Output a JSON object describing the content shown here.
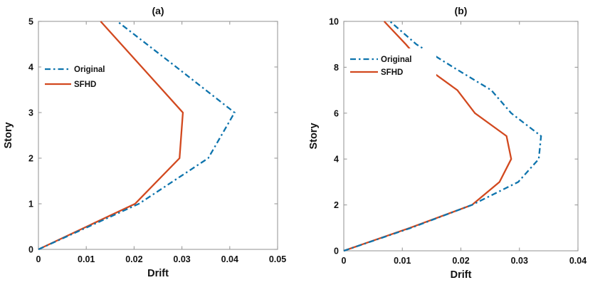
{
  "figure": {
    "background": "#ffffff",
    "axis_color": "#9a9a9a",
    "text_color": "#111111"
  },
  "chart_data": [
    {
      "id": "a",
      "type": "line",
      "title": "(a)",
      "xlabel": "Drift",
      "ylabel": "Story",
      "xlim": [
        0,
        0.05
      ],
      "ylim": [
        0,
        5
      ],
      "xticks": [
        0,
        0.01,
        0.02,
        0.03,
        0.04,
        0.05
      ],
      "yticks": [
        0,
        1,
        2,
        3,
        4,
        5
      ],
      "grid": false,
      "legend_position": "upper-left-inside",
      "legend": [
        "Original",
        "SFHD"
      ],
      "series": [
        {
          "name": "Original",
          "color": "#0e74ad",
          "style": "dash-dot",
          "stories": [
            0,
            1,
            2,
            3,
            4,
            5
          ],
          "drift": [
            0,
            0.021,
            0.0355,
            0.041,
            0.0288,
            0.0165
          ]
        },
        {
          "name": "SFHD",
          "color": "#d2491f",
          "style": "solid",
          "stories": [
            0,
            1,
            2,
            3,
            4,
            5
          ],
          "drift": [
            0,
            0.0202,
            0.0295,
            0.0302,
            0.0216,
            0.013
          ]
        }
      ]
    },
    {
      "id": "b",
      "type": "line",
      "title": "(b)",
      "xlabel": "Drift",
      "ylabel": "Story",
      "xlim": [
        0,
        0.04
      ],
      "ylim": [
        0,
        10
      ],
      "xticks": [
        0,
        0.01,
        0.02,
        0.03,
        0.04
      ],
      "yticks": [
        0,
        2,
        4,
        6,
        8,
        10
      ],
      "grid": false,
      "legend_position": "upper-left-inside",
      "legend": [
        "Original",
        "SFHD"
      ],
      "series": [
        {
          "name": "Original",
          "color": "#0e74ad",
          "style": "dash-dot",
          "stories": [
            0,
            1,
            2,
            3,
            4,
            5,
            6,
            7,
            8,
            9,
            10
          ],
          "drift": [
            0,
            0.0115,
            0.0219,
            0.0298,
            0.0333,
            0.0337,
            0.0286,
            0.0252,
            0.0187,
            0.0124,
            0.0079
          ]
        },
        {
          "name": "SFHD",
          "color": "#d2491f",
          "style": "solid",
          "stories": [
            0,
            1,
            2,
            3,
            4,
            5,
            6,
            7,
            8,
            9,
            10
          ],
          "drift": [
            0,
            0.0113,
            0.0219,
            0.0266,
            0.0286,
            0.0278,
            0.0224,
            0.0194,
            0.014,
            0.0106,
            0.0069
          ]
        }
      ]
    }
  ]
}
